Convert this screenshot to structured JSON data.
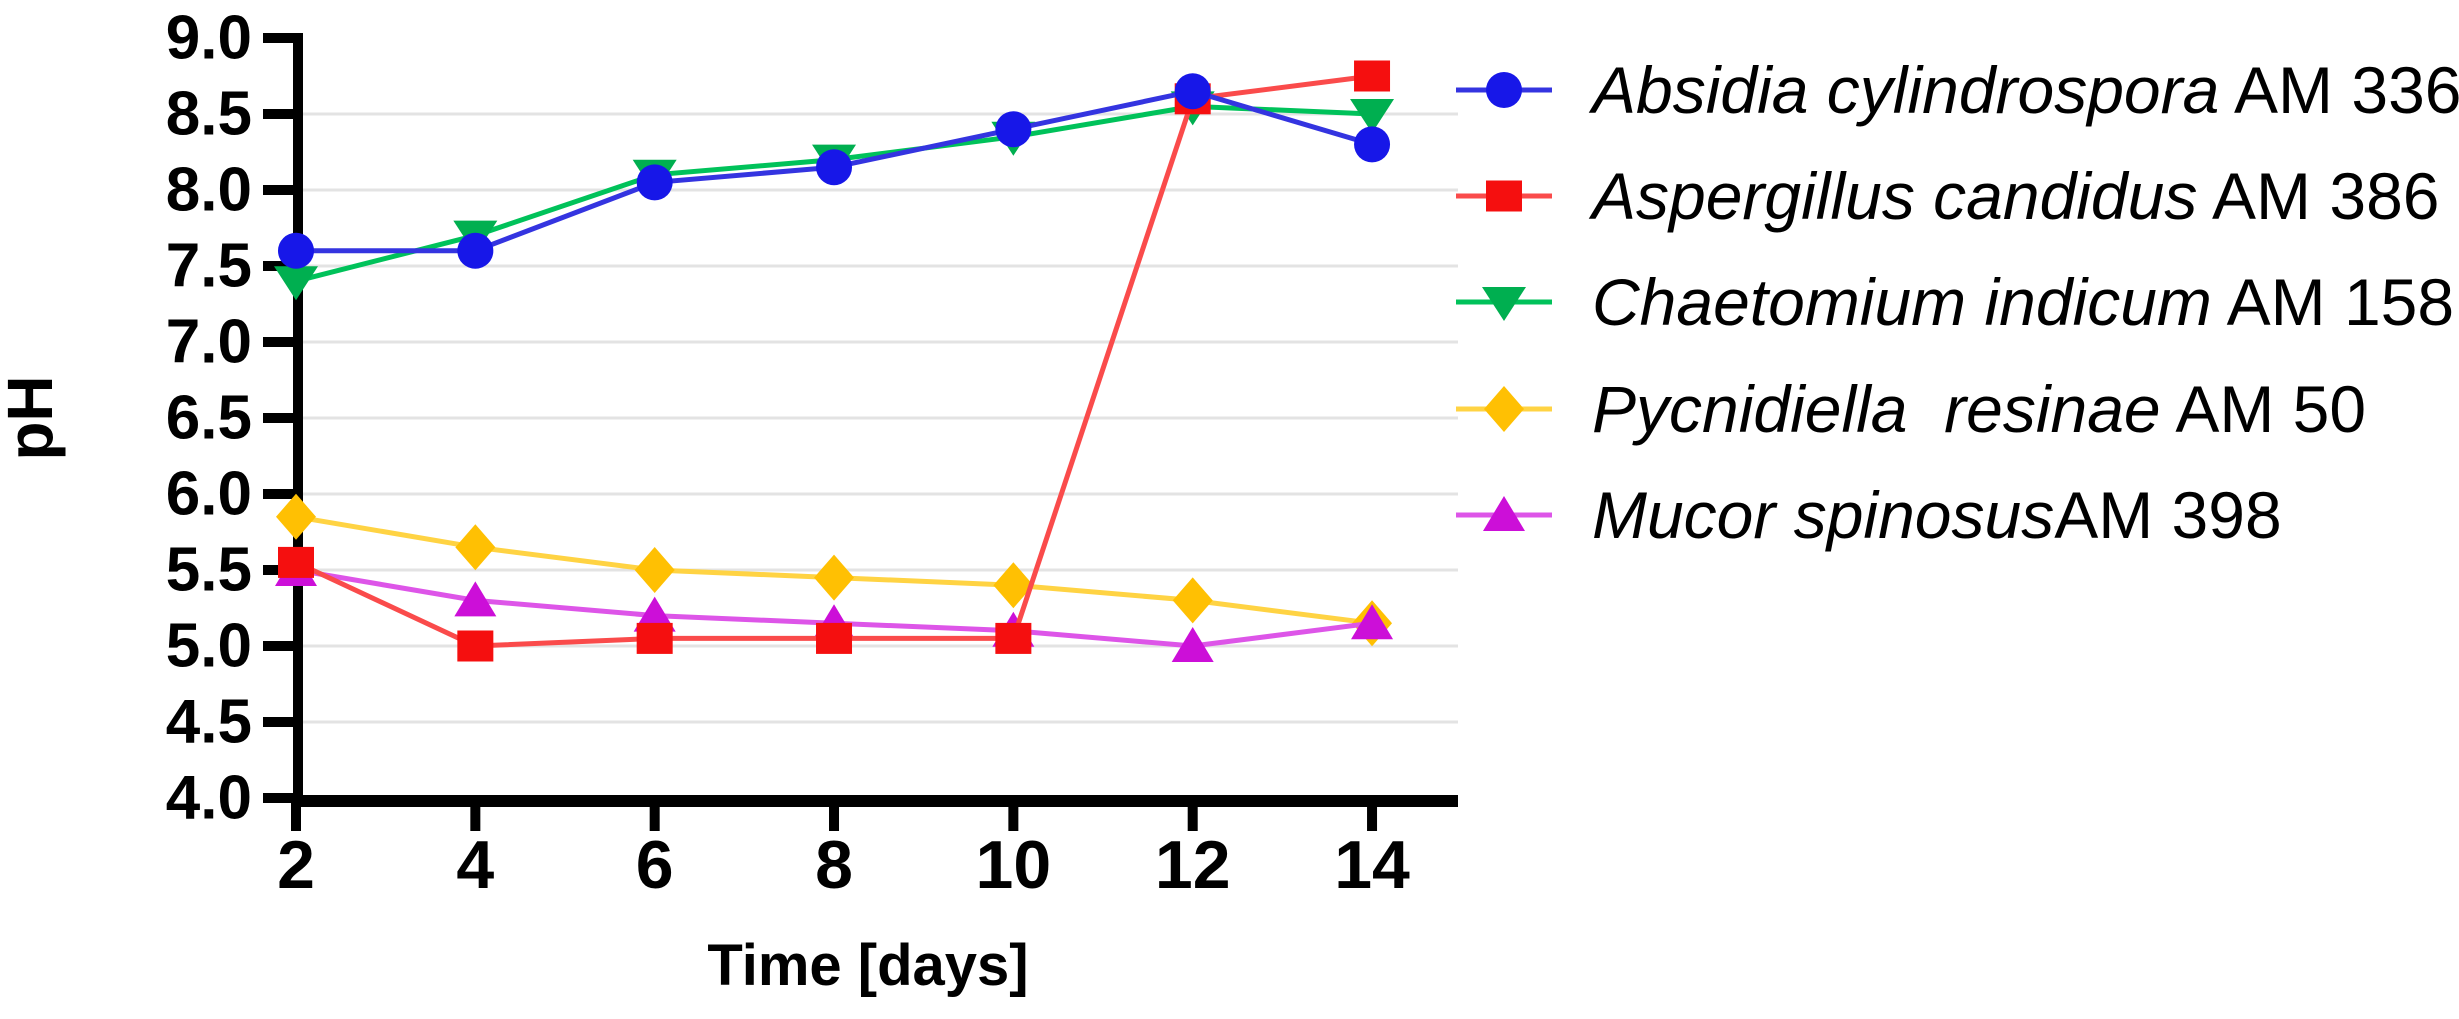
{
  "chart_data": {
    "type": "line",
    "title": "",
    "xlabel": "Time [days]",
    "ylabel": "pH",
    "x": [
      2,
      4,
      6,
      8,
      10,
      12,
      14
    ],
    "xticks": [
      "2",
      "4",
      "6",
      "8",
      "10",
      "12",
      "14"
    ],
    "yticks": [
      "9.0",
      "8.5",
      "8.0",
      "7.5",
      "7.0",
      "6.5",
      "6.0",
      "5.5",
      "5.0",
      "4.5",
      "4.0"
    ],
    "xlim": [
      2,
      15
    ],
    "ylim": [
      4.0,
      9.0
    ],
    "grid": "horizontal",
    "grid_color": "#E3E3E3",
    "axis_color": "#000000",
    "background": "#FFFFFF",
    "legend_position": "right",
    "series": [
      {
        "name": "Absidia cylindrospora AM 336",
        "name_italic": "Absidia cylindrospora",
        "name_rest": " AM 336",
        "marker": "circle",
        "color": "#1717E8",
        "line_color": "#3434E0",
        "values": [
          7.6,
          7.6,
          8.05,
          8.15,
          8.4,
          8.65,
          8.3
        ],
        "z": 5
      },
      {
        "name": "Aspergillus candidus AM 386",
        "name_italic": "Aspergillus candidus",
        "name_rest": " AM 386",
        "marker": "square",
        "color": "#F50F0F",
        "line_color": "#FA4B4B",
        "values": [
          5.55,
          5.0,
          5.05,
          5.05,
          5.05,
          8.6,
          8.75
        ],
        "z": 4
      },
      {
        "name": "Chaetomium indicum AM 158",
        "name_italic": "Chaetomium indicum",
        "name_rest": " AM 158",
        "marker": "triangle-down",
        "color": "#00AF50",
        "line_color": "#00C25A",
        "values": [
          7.4,
          7.7,
          8.1,
          8.2,
          8.35,
          8.55,
          8.5
        ],
        "z": 1
      },
      {
        "name": "Pycnidiella  resinae AM 50",
        "name_italic": "Pycnidiella  resinae",
        "name_rest": " AM 50",
        "marker": "diamond",
        "color": "#FFC003",
        "line_color": "#FFD343",
        "values": [
          5.85,
          5.65,
          5.5,
          5.45,
          5.4,
          5.3,
          5.15
        ],
        "z": 2
      },
      {
        "name": "Mucor spinosusAM 398",
        "name_italic": "Mucor spinosus",
        "name_rest": "AM 398",
        "marker": "triangle-up",
        "color": "#CC0FD8",
        "line_color": "#DD55E8",
        "values": [
          5.5,
          5.3,
          5.2,
          5.15,
          5.1,
          5.0,
          5.15
        ],
        "z": 3
      }
    ]
  }
}
